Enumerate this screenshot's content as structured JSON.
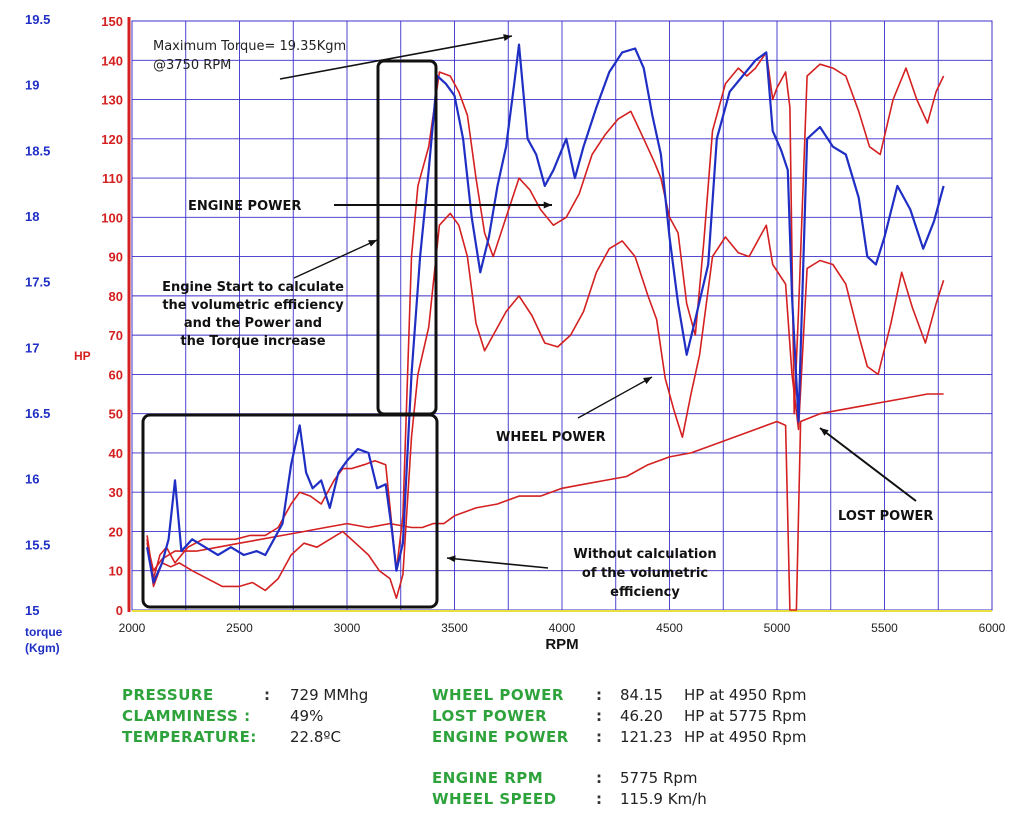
{
  "chart_data": {
    "type": "line",
    "x_axis": {
      "label": "RPM",
      "range": [
        2000,
        6000
      ],
      "ticks": [
        2000,
        2500,
        3000,
        3500,
        4000,
        4500,
        5000,
        5500,
        6000
      ]
    },
    "y_axis_hp": {
      "label": "HP",
      "range": [
        0,
        150
      ],
      "ticks": [
        0,
        10,
        20,
        30,
        40,
        50,
        60,
        70,
        80,
        90,
        100,
        110,
        120,
        130,
        140,
        150
      ]
    },
    "y_axis_torque": {
      "label_line1": "torque",
      "label_line2": "(Kgm)",
      "range": [
        15,
        19.5
      ],
      "ticks": [
        "15",
        "15.5",
        "16",
        "16.5",
        "17",
        "17.5",
        "18",
        "18.5",
        "19",
        "19.5"
      ]
    },
    "grid": true,
    "series": [
      {
        "color": "#d42020",
        "axis": "hp",
        "points": [
          [
            2070,
            19
          ],
          [
            2100,
            8
          ],
          [
            2130,
            14
          ],
          [
            2160,
            16
          ],
          [
            2200,
            12
          ],
          [
            2260,
            16
          ],
          [
            2330,
            18
          ],
          [
            2400,
            18
          ],
          [
            2480,
            18
          ],
          [
            2550,
            19
          ],
          [
            2620,
            19
          ],
          [
            2680,
            21
          ],
          [
            2740,
            27
          ],
          [
            2780,
            30
          ],
          [
            2830,
            29
          ],
          [
            2880,
            27
          ],
          [
            2940,
            33
          ],
          [
            2980,
            36
          ],
          [
            3020,
            36
          ],
          [
            3080,
            37
          ],
          [
            3130,
            38
          ],
          [
            3180,
            37
          ],
          [
            3230,
            10
          ],
          [
            3260,
            24
          ],
          [
            3300,
            90
          ],
          [
            3330,
            108
          ],
          [
            3380,
            118
          ],
          [
            3430,
            137
          ],
          [
            3480,
            136
          ],
          [
            3520,
            132
          ],
          [
            3560,
            126
          ],
          [
            3600,
            110
          ],
          [
            3640,
            96
          ],
          [
            3680,
            90
          ],
          [
            3740,
            100
          ],
          [
            3800,
            110
          ],
          [
            3850,
            107
          ],
          [
            3900,
            102
          ],
          [
            3960,
            98
          ],
          [
            4020,
            100
          ],
          [
            4080,
            106
          ],
          [
            4140,
            116
          ],
          [
            4200,
            121
          ],
          [
            4260,
            125
          ],
          [
            4320,
            127
          ],
          [
            4380,
            120
          ],
          [
            4430,
            114
          ],
          [
            4460,
            110
          ],
          [
            4500,
            100
          ],
          [
            4540,
            96
          ],
          [
            4580,
            78
          ],
          [
            4620,
            70
          ],
          [
            4660,
            94
          ],
          [
            4700,
            122
          ],
          [
            4760,
            134
          ],
          [
            4820,
            138
          ],
          [
            4860,
            136
          ],
          [
            4900,
            138
          ],
          [
            4950,
            142
          ],
          [
            4980,
            130
          ],
          [
            5000,
            133
          ],
          [
            5040,
            137
          ],
          [
            5060,
            128
          ],
          [
            5080,
            50
          ],
          [
            5100,
            76
          ],
          [
            5140,
            136
          ],
          [
            5200,
            139
          ],
          [
            5260,
            138
          ],
          [
            5320,
            136
          ],
          [
            5380,
            127
          ],
          [
            5430,
            118
          ],
          [
            5480,
            116
          ],
          [
            5540,
            130
          ],
          [
            5600,
            138
          ],
          [
            5650,
            130
          ],
          [
            5700,
            124
          ],
          [
            5740,
            132
          ],
          [
            5775,
            136
          ]
        ]
      },
      {
        "color": "#d42020",
        "axis": "hp",
        "points": [
          [
            2070,
            18
          ],
          [
            2100,
            6
          ],
          [
            2140,
            12
          ],
          [
            2180,
            11
          ],
          [
            2220,
            12
          ],
          [
            2280,
            10
          ],
          [
            2350,
            8
          ],
          [
            2420,
            6
          ],
          [
            2500,
            6
          ],
          [
            2560,
            7
          ],
          [
            2620,
            5
          ],
          [
            2680,
            8
          ],
          [
            2740,
            14
          ],
          [
            2800,
            17
          ],
          [
            2860,
            16
          ],
          [
            2920,
            18
          ],
          [
            2980,
            20
          ],
          [
            3040,
            17
          ],
          [
            3100,
            14
          ],
          [
            3150,
            10
          ],
          [
            3200,
            8
          ],
          [
            3230,
            3
          ],
          [
            3260,
            9
          ],
          [
            3300,
            44
          ],
          [
            3330,
            60
          ],
          [
            3380,
            72
          ],
          [
            3430,
            98
          ],
          [
            3480,
            101
          ],
          [
            3520,
            98
          ],
          [
            3560,
            90
          ],
          [
            3600,
            73
          ],
          [
            3640,
            66
          ],
          [
            3680,
            70
          ],
          [
            3740,
            76
          ],
          [
            3800,
            80
          ],
          [
            3860,
            75
          ],
          [
            3920,
            68
          ],
          [
            3980,
            67
          ],
          [
            4040,
            70
          ],
          [
            4100,
            76
          ],
          [
            4160,
            86
          ],
          [
            4220,
            92
          ],
          [
            4280,
            94
          ],
          [
            4340,
            90
          ],
          [
            4400,
            80
          ],
          [
            4440,
            74
          ],
          [
            4480,
            59
          ],
          [
            4520,
            51
          ],
          [
            4560,
            44
          ],
          [
            4600,
            55
          ],
          [
            4640,
            65
          ],
          [
            4700,
            90
          ],
          [
            4760,
            95
          ],
          [
            4820,
            91
          ],
          [
            4870,
            90
          ],
          [
            4920,
            95
          ],
          [
            4950,
            98
          ],
          [
            4980,
            88
          ],
          [
            5040,
            83
          ],
          [
            5070,
            60
          ],
          [
            5100,
            46
          ],
          [
            5140,
            87
          ],
          [
            5200,
            89
          ],
          [
            5260,
            88
          ],
          [
            5320,
            83
          ],
          [
            5380,
            70
          ],
          [
            5420,
            62
          ],
          [
            5470,
            60
          ],
          [
            5530,
            73
          ],
          [
            5580,
            86
          ],
          [
            5630,
            77
          ],
          [
            5690,
            68
          ],
          [
            5740,
            78
          ],
          [
            5775,
            84
          ]
        ]
      },
      {
        "color": "#d42020",
        "axis": "hp",
        "points": [
          [
            2070,
            17
          ],
          [
            2100,
            10
          ],
          [
            2140,
            13
          ],
          [
            2200,
            15
          ],
          [
            2300,
            15
          ],
          [
            2400,
            16
          ],
          [
            2500,
            17
          ],
          [
            2600,
            18
          ],
          [
            2700,
            19
          ],
          [
            2800,
            20
          ],
          [
            2900,
            21
          ],
          [
            3000,
            22
          ],
          [
            3100,
            21
          ],
          [
            3200,
            22
          ],
          [
            3300,
            21
          ],
          [
            3350,
            21
          ],
          [
            3400,
            22
          ],
          [
            3450,
            22
          ],
          [
            3500,
            24
          ],
          [
            3600,
            26
          ],
          [
            3700,
            27
          ],
          [
            3800,
            29
          ],
          [
            3900,
            29
          ],
          [
            4000,
            31
          ],
          [
            4100,
            32
          ],
          [
            4200,
            33
          ],
          [
            4300,
            34
          ],
          [
            4400,
            37
          ],
          [
            4500,
            39
          ],
          [
            4600,
            40
          ],
          [
            4700,
            42
          ],
          [
            4800,
            44
          ],
          [
            4900,
            46
          ],
          [
            4950,
            47
          ],
          [
            5000,
            48
          ],
          [
            5040,
            47
          ],
          [
            5060,
            0
          ],
          [
            5090,
            0
          ],
          [
            5110,
            48
          ],
          [
            5200,
            50
          ],
          [
            5300,
            51
          ],
          [
            5400,
            52
          ],
          [
            5500,
            53
          ],
          [
            5600,
            54
          ],
          [
            5700,
            55
          ],
          [
            5775,
            55
          ]
        ]
      },
      {
        "color": "#1f2fc4",
        "axis": "hp",
        "points": [
          [
            2070,
            16
          ],
          [
            2100,
            7
          ],
          [
            2140,
            12
          ],
          [
            2170,
            18
          ],
          [
            2200,
            33
          ],
          [
            2230,
            15
          ],
          [
            2280,
            18
          ],
          [
            2340,
            16
          ],
          [
            2400,
            14
          ],
          [
            2460,
            16
          ],
          [
            2520,
            14
          ],
          [
            2580,
            15
          ],
          [
            2620,
            14
          ],
          [
            2640,
            16
          ],
          [
            2700,
            22
          ],
          [
            2740,
            37
          ],
          [
            2780,
            47
          ],
          [
            2810,
            35
          ],
          [
            2840,
            31
          ],
          [
            2880,
            33
          ],
          [
            2920,
            26
          ],
          [
            2960,
            35
          ],
          [
            3000,
            38
          ],
          [
            3050,
            41
          ],
          [
            3100,
            40
          ],
          [
            3140,
            31
          ],
          [
            3180,
            32
          ],
          [
            3210,
            20
          ],
          [
            3230,
            10
          ],
          [
            3260,
            17
          ],
          [
            3300,
            60
          ],
          [
            3340,
            90
          ],
          [
            3380,
            112
          ],
          [
            3420,
            136
          ],
          [
            3460,
            134
          ],
          [
            3500,
            131
          ],
          [
            3540,
            120
          ],
          [
            3580,
            100
          ],
          [
            3620,
            86
          ],
          [
            3660,
            95
          ],
          [
            3700,
            108
          ],
          [
            3740,
            118
          ],
          [
            3780,
            135
          ],
          [
            3800,
            144
          ],
          [
            3840,
            120
          ],
          [
            3880,
            116
          ],
          [
            3920,
            108
          ],
          [
            3960,
            112
          ],
          [
            4020,
            120
          ],
          [
            4060,
            110
          ],
          [
            4100,
            118
          ],
          [
            4160,
            128
          ],
          [
            4220,
            137
          ],
          [
            4280,
            142
          ],
          [
            4340,
            143
          ],
          [
            4380,
            138
          ],
          [
            4420,
            126
          ],
          [
            4460,
            116
          ],
          [
            4500,
            95
          ],
          [
            4540,
            78
          ],
          [
            4580,
            65
          ],
          [
            4620,
            74
          ],
          [
            4680,
            88
          ],
          [
            4720,
            120
          ],
          [
            4780,
            132
          ],
          [
            4840,
            136
          ],
          [
            4900,
            140
          ],
          [
            4950,
            142
          ],
          [
            4980,
            122
          ],
          [
            5020,
            117
          ],
          [
            5050,
            112
          ],
          [
            5070,
            80
          ],
          [
            5100,
            48
          ],
          [
            5140,
            120
          ],
          [
            5200,
            123
          ],
          [
            5260,
            118
          ],
          [
            5320,
            116
          ],
          [
            5380,
            105
          ],
          [
            5420,
            90
          ],
          [
            5460,
            88
          ],
          [
            5500,
            95
          ],
          [
            5560,
            108
          ],
          [
            5620,
            102
          ],
          [
            5680,
            92
          ],
          [
            5730,
            99
          ],
          [
            5775,
            108
          ]
        ]
      }
    ],
    "annotations": [
      {
        "id": "max-torque",
        "line1": "Maximum Torque= 19.35Kgm",
        "line2": "@3750 RPM"
      },
      {
        "id": "engine-power",
        "text": "ENGINE POWER"
      },
      {
        "id": "engine-start",
        "lines": [
          "Engine Start to calculate",
          "the volumetric efficiency",
          "and the Power and",
          "the Torque increase"
        ]
      },
      {
        "id": "wheel-power",
        "text": "WHEEL POWER"
      },
      {
        "id": "lost-power",
        "text": "LOST POWER"
      },
      {
        "id": "without-calc",
        "lines": [
          "Without calculation",
          "of the volumetric",
          "efficiency"
        ]
      }
    ]
  },
  "stats": {
    "pressure": {
      "label": "PRESSURE",
      "colon": ":",
      "value": "729 MMhg"
    },
    "clamminess": {
      "label": "CLAMMINESS :",
      "value": "49%"
    },
    "temperature": {
      "label": "TEMPERATURE:",
      "value": "22.8ºC"
    },
    "wheel_power": {
      "label": "WHEEL POWER",
      "colon": ":",
      "value": "84.15",
      "unit": "HP at 4950 Rpm"
    },
    "lost_power": {
      "label": "LOST POWER",
      "colon": ":",
      "value": "46.20",
      "unit": "HP at 5775 Rpm"
    },
    "engine_power": {
      "label": "ENGINE POWER",
      "colon": ":",
      "value": "121.23",
      "unit": "HP at 4950 Rpm"
    },
    "engine_rpm": {
      "label": "ENGINE RPM",
      "colon": ":",
      "value": "5775 Rpm"
    },
    "wheel_speed": {
      "label": "WHEEL SPEED",
      "colon": ":",
      "value": "115.9 Km/h"
    }
  },
  "colors": {
    "grid": "#3b2fc9",
    "hp_axis": "#d42020",
    "torque_axis": "#1f2fc4",
    "series_red": "#d42020",
    "series_blue": "#1f2fc4",
    "stat_label": "#2ea33c"
  }
}
